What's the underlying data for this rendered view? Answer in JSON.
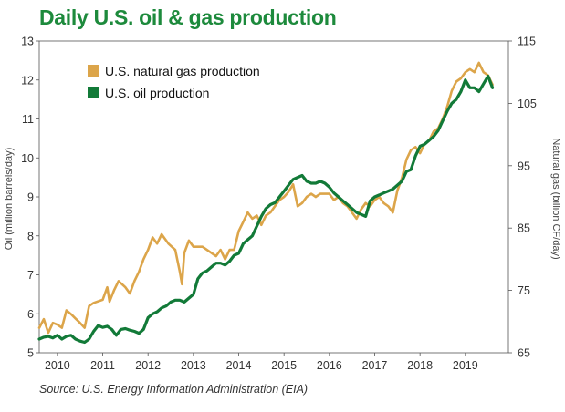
{
  "title": "Daily U.S. oil & gas production",
  "source": "Source: U.S. Energy Information Administration (EIA)",
  "colors": {
    "title": "#1d8a3c",
    "gas": "#dca54a",
    "oil": "#127a38",
    "axis": "#333333"
  },
  "chart_data": {
    "type": "line",
    "title": "Daily U.S. oil & gas production",
    "xlabel": "",
    "ylabel": "Oil (million barrels/day)",
    "y2label": "Natural gas (billion CF/day)",
    "xlim": [
      2009.6,
      2019.95
    ],
    "ylim": [
      5.0,
      13.0
    ],
    "y2lim": [
      65,
      115
    ],
    "x_ticks": [
      "2010",
      "2011",
      "2012",
      "2013",
      "2014",
      "2015",
      "2016",
      "2017",
      "2018",
      "2019"
    ],
    "y_ticks": [
      "5",
      "6",
      "7",
      "8",
      "9",
      "10",
      "11",
      "12",
      "13"
    ],
    "y2_ticks": [
      "65",
      "75",
      "85",
      "95",
      "105",
      "115"
    ],
    "legend_position": "top-left",
    "series": [
      {
        "name": "U.S. natural gas production",
        "axis": "right",
        "color": "#dca54a",
        "x": [
          2009.6,
          2009.7,
          2009.8,
          2009.9,
          2010.0,
          2010.1,
          2010.2,
          2010.3,
          2010.4,
          2010.5,
          2010.6,
          2010.7,
          2010.8,
          2011.0,
          2011.1,
          2011.15,
          2011.25,
          2011.35,
          2011.5,
          2011.6,
          2011.7,
          2011.8,
          2011.9,
          2012.0,
          2012.1,
          2012.2,
          2012.3,
          2012.35,
          2012.45,
          2012.6,
          2012.7,
          2012.75,
          2012.8,
          2012.9,
          2013.0,
          2013.1,
          2013.2,
          2013.3,
          2013.4,
          2013.5,
          2013.6,
          2013.7,
          2013.8,
          2013.9,
          2014.0,
          2014.1,
          2014.2,
          2014.3,
          2014.4,
          2014.5,
          2014.6,
          2014.7,
          2014.8,
          2014.9,
          2015.0,
          2015.1,
          2015.2,
          2015.3,
          2015.4,
          2015.5,
          2015.6,
          2015.7,
          2015.8,
          2015.9,
          2016.0,
          2016.1,
          2016.2,
          2016.3,
          2016.4,
          2016.5,
          2016.6,
          2016.7,
          2016.8,
          2016.9,
          2017.0,
          2017.1,
          2017.2,
          2017.3,
          2017.4,
          2017.5,
          2017.6,
          2017.7,
          2017.8,
          2017.9,
          2018.0,
          2018.1,
          2018.2,
          2018.3,
          2018.4,
          2018.5,
          2018.6,
          2018.7,
          2018.8,
          2018.9,
          2019.0,
          2019.1,
          2019.2,
          2019.3,
          2019.4,
          2019.5,
          2019.6
        ],
        "values": [
          69.0,
          70.4,
          68.2,
          69.8,
          69.5,
          69.0,
          71.8,
          71.2,
          70.5,
          69.8,
          69.0,
          72.5,
          73.0,
          73.5,
          75.5,
          73.2,
          75.0,
          76.5,
          75.5,
          74.5,
          76.5,
          78.0,
          80.0,
          81.5,
          83.5,
          82.5,
          84.0,
          83.5,
          82.5,
          81.5,
          78.0,
          76.0,
          81.0,
          83.0,
          82.0,
          82.0,
          82.0,
          81.5,
          81.0,
          80.5,
          81.5,
          80.0,
          81.5,
          81.5,
          84.5,
          86.0,
          87.5,
          86.5,
          87.0,
          85.5,
          87.0,
          87.5,
          88.5,
          89.5,
          90.0,
          90.8,
          92.0,
          88.5,
          89.0,
          90.0,
          90.5,
          90.0,
          90.5,
          90.5,
          90.5,
          89.5,
          90.0,
          89.0,
          88.5,
          87.5,
          86.5,
          88.0,
          89.0,
          88.5,
          89.5,
          90.0,
          89.0,
          88.5,
          87.5,
          91.0,
          93.0,
          96.0,
          97.5,
          98.0,
          97.0,
          98.5,
          99.0,
          100.5,
          101.0,
          102.5,
          104.5,
          107.0,
          108.5,
          109.0,
          110.0,
          110.5,
          110.0,
          111.5,
          110.0,
          109.5,
          108.0
        ]
      },
      {
        "name": "U.S. oil production",
        "axis": "left",
        "color": "#127a38",
        "x": [
          2009.6,
          2009.7,
          2009.8,
          2009.9,
          2010.0,
          2010.1,
          2010.2,
          2010.3,
          2010.4,
          2010.5,
          2010.6,
          2010.7,
          2010.8,
          2010.9,
          2011.0,
          2011.1,
          2011.2,
          2011.3,
          2011.4,
          2011.5,
          2011.6,
          2011.7,
          2011.8,
          2011.9,
          2012.0,
          2012.1,
          2012.2,
          2012.3,
          2012.4,
          2012.5,
          2012.6,
          2012.7,
          2012.8,
          2012.9,
          2013.0,
          2013.1,
          2013.2,
          2013.3,
          2013.4,
          2013.5,
          2013.6,
          2013.7,
          2013.8,
          2013.9,
          2014.0,
          2014.1,
          2014.2,
          2014.3,
          2014.4,
          2014.5,
          2014.6,
          2014.7,
          2014.8,
          2014.9,
          2015.0,
          2015.1,
          2015.2,
          2015.3,
          2015.4,
          2015.5,
          2015.6,
          2015.7,
          2015.8,
          2015.9,
          2016.0,
          2016.1,
          2016.2,
          2016.3,
          2016.4,
          2016.5,
          2016.6,
          2016.7,
          2016.8,
          2016.9,
          2017.0,
          2017.1,
          2017.2,
          2017.3,
          2017.4,
          2017.5,
          2017.6,
          2017.7,
          2017.8,
          2017.9,
          2018.0,
          2018.1,
          2018.2,
          2018.3,
          2018.4,
          2018.5,
          2018.6,
          2018.7,
          2018.8,
          2018.9,
          2019.0,
          2019.1,
          2019.2,
          2019.3,
          2019.4,
          2019.5,
          2019.6
        ],
        "values": [
          5.35,
          5.4,
          5.42,
          5.38,
          5.45,
          5.35,
          5.42,
          5.45,
          5.35,
          5.3,
          5.27,
          5.35,
          5.55,
          5.7,
          5.65,
          5.68,
          5.6,
          5.45,
          5.6,
          5.62,
          5.58,
          5.55,
          5.5,
          5.6,
          5.9,
          6.0,
          6.05,
          6.15,
          6.2,
          6.3,
          6.35,
          6.35,
          6.3,
          6.4,
          6.5,
          6.9,
          7.05,
          7.1,
          7.2,
          7.3,
          7.3,
          7.25,
          7.35,
          7.5,
          7.55,
          7.8,
          7.9,
          8.0,
          8.25,
          8.5,
          8.7,
          8.8,
          8.85,
          9.0,
          9.15,
          9.3,
          9.45,
          9.5,
          9.55,
          9.4,
          9.35,
          9.35,
          9.4,
          9.35,
          9.25,
          9.1,
          9.0,
          8.9,
          8.8,
          8.7,
          8.6,
          8.55,
          8.5,
          8.9,
          9.0,
          9.05,
          9.1,
          9.15,
          9.2,
          9.3,
          9.4,
          9.65,
          9.7,
          10.05,
          10.3,
          10.35,
          10.45,
          10.55,
          10.7,
          10.95,
          11.2,
          11.4,
          11.5,
          11.7,
          12.0,
          11.8,
          11.8,
          11.7,
          11.9,
          12.1,
          11.8
        ]
      }
    ]
  }
}
